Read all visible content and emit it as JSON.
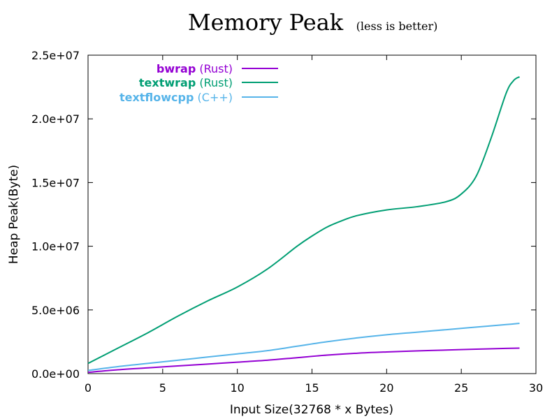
{
  "chart_data": {
    "type": "line",
    "title": "Memory Peak",
    "subtitle": "(less is better)",
    "xlabel": "Input Size(32768 * x Bytes)",
    "ylabel": "Heap Peak(Byte)",
    "xlim": [
      0,
      30
    ],
    "ylim": [
      0,
      25000000
    ],
    "x_ticks": [
      0,
      5,
      10,
      15,
      20,
      25,
      30
    ],
    "x_tick_labels": [
      "0",
      "5",
      "10",
      "15",
      "20",
      "25",
      "30"
    ],
    "y_ticks": [
      0,
      5000000,
      10000000,
      15000000,
      20000000,
      25000000
    ],
    "y_tick_labels": [
      "0.0e+00",
      "5.0e+06",
      "1.0e+07",
      "1.5e+07",
      "2.0e+07",
      "2.5e+07"
    ],
    "grid": false,
    "legend_position": "top-left",
    "series": [
      {
        "name": "bwrap",
        "lang": "(Rust)",
        "color": "#9400d3",
        "x": [
          0,
          2,
          4,
          6,
          8,
          10,
          12,
          14,
          16,
          18,
          20,
          22,
          24,
          26,
          28,
          28.9
        ],
        "y": [
          100000,
          300000,
          450000,
          600000,
          750000,
          900000,
          1050000,
          1250000,
          1450000,
          1600000,
          1700000,
          1780000,
          1850000,
          1920000,
          1980000,
          2000000
        ]
      },
      {
        "name": "textwrap",
        "lang": "(Rust)",
        "color": "#009e73",
        "x": [
          0,
          2,
          4,
          6,
          8,
          10,
          12,
          14,
          15,
          16,
          17,
          18,
          20,
          22,
          24,
          25,
          26,
          27,
          28,
          28.5,
          28.9
        ],
        "y": [
          800000,
          2000000,
          3200000,
          4500000,
          5700000,
          6800000,
          8200000,
          10000000,
          10800000,
          11500000,
          12000000,
          12400000,
          12850000,
          13100000,
          13500000,
          14100000,
          15500000,
          18500000,
          22000000,
          23000000,
          23300000
        ]
      },
      {
        "name": "textflowcpp",
        "lang": "(C++)",
        "color": "#56b4e9",
        "x": [
          0,
          2,
          4,
          6,
          8,
          10,
          12,
          14,
          16,
          18,
          20,
          22,
          24,
          26,
          28,
          28.9
        ],
        "y": [
          250000,
          550000,
          800000,
          1050000,
          1300000,
          1550000,
          1800000,
          2150000,
          2500000,
          2800000,
          3050000,
          3250000,
          3450000,
          3650000,
          3850000,
          3950000
        ]
      }
    ]
  }
}
